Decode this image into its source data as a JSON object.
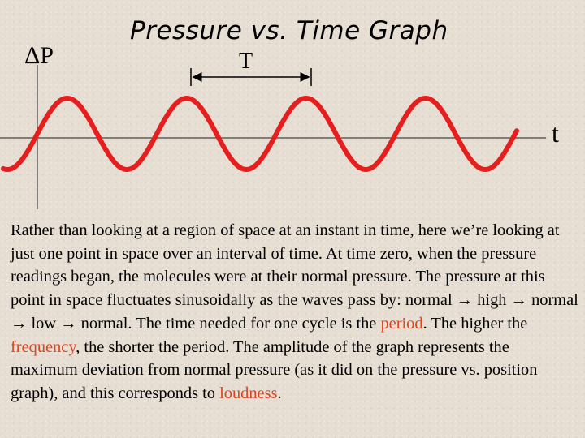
{
  "title": "Pressure vs. Time Graph",
  "y_axis_label": "ΔP",
  "x_axis_label": "t",
  "period_label": "T",
  "wave_color": "#e61e1e",
  "highlight_color": "#e0431f",
  "description": {
    "p1": "Rather than looking at a region of space at an instant in time, here we’re looking at just one point in space over an interval of time.  At time zero, when the pressure readings began, the molecules were at their normal pressure.  The pressure at this point in space fluctuates sinusoidally as the waves pass by: normal ",
    "arrow": "→",
    "high": " high ",
    "normal": " normal ",
    "low": " low ",
    "normal_end": " normal.  The time needed for one cycle is the ",
    "period": "period",
    "p2": ".  The higher the ",
    "frequency": "frequency",
    "p3": ", the shorter the period.  The amplitude of the graph represents the maximum deviation from normal pressure (as it did on the pressure vs. position graph), and this corresponds to ",
    "loudness": "loudness",
    "p4": "."
  }
}
